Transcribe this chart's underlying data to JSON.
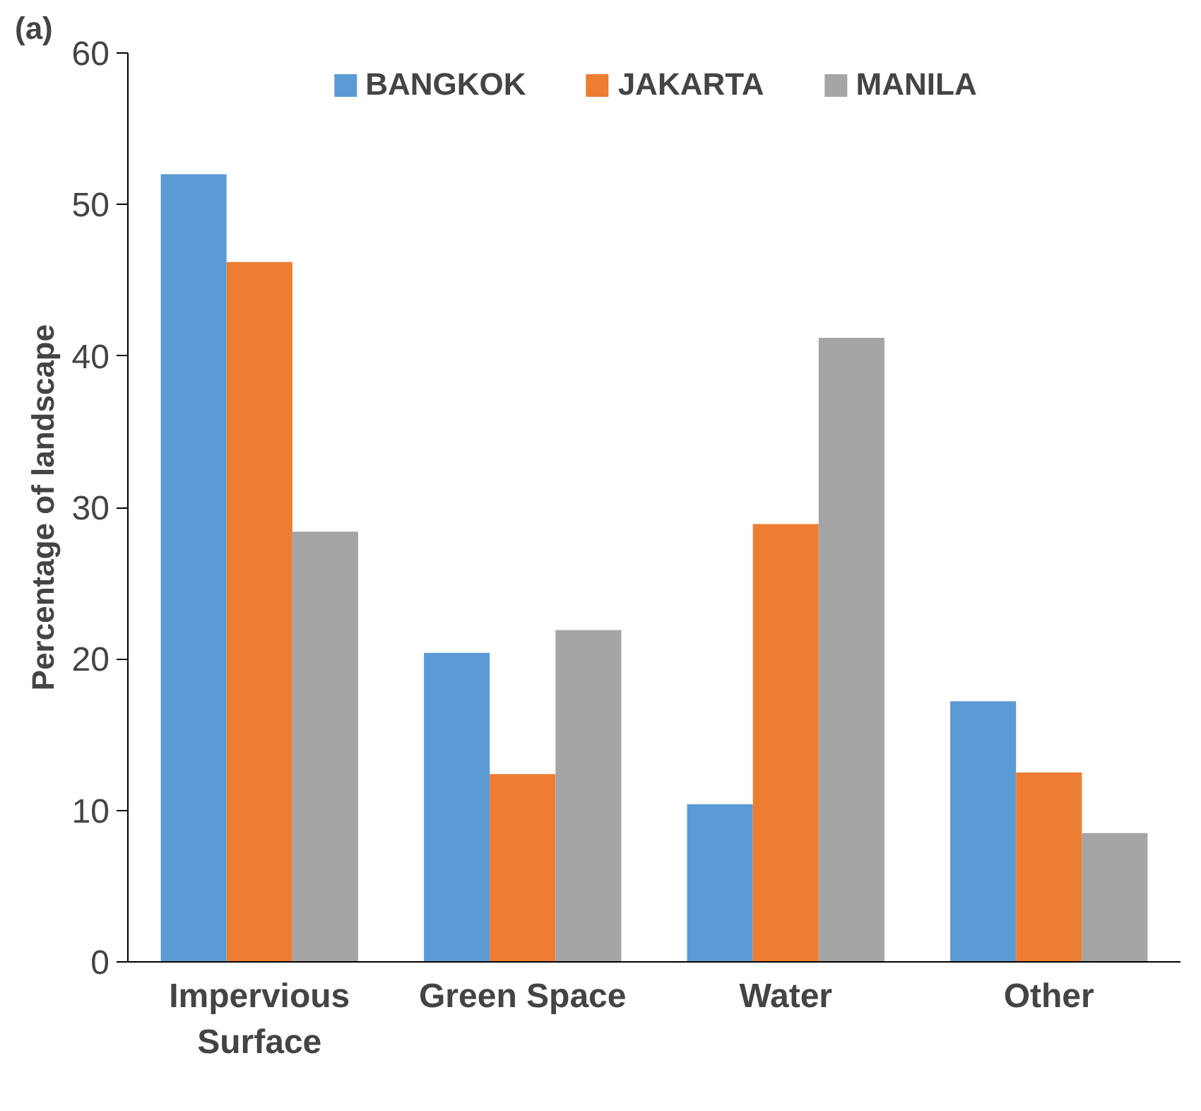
{
  "chart_data": {
    "type": "bar",
    "title": "(a)",
    "ylabel": "Percentage of landscape",
    "categories": [
      "Impervious\nSurface",
      "Green Space",
      "Water",
      "Other"
    ],
    "series": [
      {
        "name": "BANGKOK",
        "color": "#5b9bd5",
        "values": [
          52.0,
          20.4,
          10.4,
          17.2
        ]
      },
      {
        "name": "JAKARTA",
        "color": "#ed7d31",
        "values": [
          46.2,
          12.4,
          28.9,
          12.5
        ]
      },
      {
        "name": "MANILA",
        "color": "#a5a5a5",
        "values": [
          28.4,
          21.9,
          41.2,
          8.5
        ]
      }
    ],
    "ylim": [
      0,
      60
    ],
    "yticks": [
      0,
      10,
      20,
      30,
      40,
      50,
      60
    ],
    "grid": false,
    "legend": "top"
  }
}
